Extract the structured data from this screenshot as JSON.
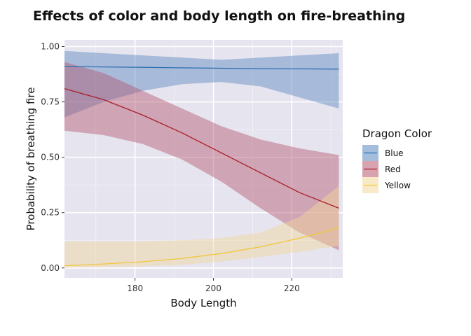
{
  "chart_data": {
    "type": "line",
    "title": "Effects of color and body length on fire-breathing",
    "xlabel": "Body Length",
    "ylabel": "Probability of breathing fire",
    "xlim": [
      162,
      233
    ],
    "ylim": [
      -0.045,
      1.03
    ],
    "x_ticks": [
      180,
      200,
      220
    ],
    "y_ticks": [
      0.0,
      0.25,
      0.5,
      0.75,
      1.0
    ],
    "y_tick_labels": [
      "0.00",
      "0.25",
      "0.50",
      "0.75",
      "1.00"
    ],
    "grid": true,
    "legend": {
      "title": "Dragon Color",
      "position": "right"
    },
    "series": [
      {
        "name": "Blue",
        "color": "#2c6fb0",
        "fill": "#5b87bf",
        "x": [
          162,
          172,
          182,
          192,
          202,
          212,
          222,
          232
        ],
        "y": [
          0.91,
          0.908,
          0.906,
          0.904,
          0.902,
          0.9,
          0.899,
          0.898
        ],
        "lower": [
          0.68,
          0.75,
          0.8,
          0.83,
          0.84,
          0.82,
          0.77,
          0.72
        ],
        "upper": [
          0.98,
          0.97,
          0.96,
          0.95,
          0.94,
          0.95,
          0.96,
          0.97
        ]
      },
      {
        "name": "Red",
        "color": "#a81c2b",
        "fill": "#b4576e",
        "x": [
          162,
          172,
          182,
          192,
          202,
          212,
          222,
          232
        ],
        "y": [
          0.81,
          0.76,
          0.69,
          0.61,
          0.52,
          0.43,
          0.34,
          0.27
        ],
        "lower": [
          0.62,
          0.6,
          0.56,
          0.49,
          0.39,
          0.27,
          0.16,
          0.08
        ],
        "upper": [
          0.93,
          0.88,
          0.8,
          0.72,
          0.64,
          0.58,
          0.54,
          0.51
        ]
      },
      {
        "name": "Yellow",
        "color": "#f2c63f",
        "fill": "#f2d89a",
        "x": [
          162,
          172,
          182,
          192,
          202,
          212,
          222,
          232
        ],
        "y": [
          0.01,
          0.018,
          0.028,
          0.043,
          0.065,
          0.095,
          0.135,
          0.18
        ],
        "lower": [
          0.001,
          0.003,
          0.007,
          0.014,
          0.028,
          0.05,
          0.072,
          0.1
        ],
        "upper": [
          0.12,
          0.12,
          0.12,
          0.125,
          0.135,
          0.16,
          0.23,
          0.37
        ]
      }
    ]
  }
}
